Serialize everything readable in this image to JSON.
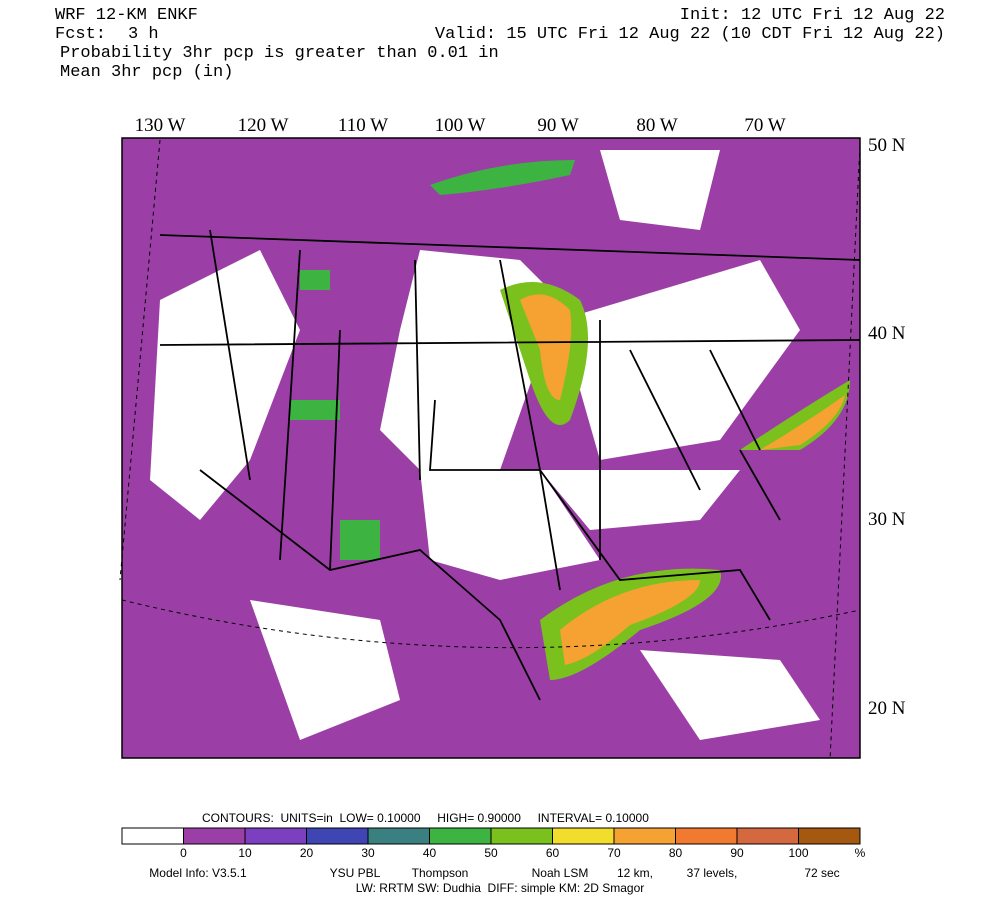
{
  "header": {
    "model": "WRF 12-KM ENKF",
    "init": "Init: 12 UTC Fri 12 Aug 22",
    "fcst_label": "Fcst:",
    "fcst_value": "3 h",
    "valid": "Valid: 15 UTC Fri 12 Aug 22 (10 CDT Fri 12 Aug 22)",
    "field1": "Probability 3hr pcp is greater than 0.01 in",
    "field2": "Mean 3hr pcp (in)"
  },
  "map": {
    "lon_labels": [
      "130 W",
      "120 W",
      "110 W",
      "100 W",
      "90 W",
      "80 W",
      "70 W"
    ],
    "lat_labels": [
      "50 N",
      "40 N",
      "30 N",
      "20 N"
    ]
  },
  "colorbar": {
    "contours": "CONTOURS:  UNITS=in  LOW= 0.10000     HIGH= 0.90000     INTERVAL= 0.10000",
    "colors": [
      "#ffffff",
      "#9b3fa6",
      "#7b3fbf",
      "#3f46b4",
      "#3a8080",
      "#3db441",
      "#7ac11e",
      "#f2dc2c",
      "#f5a233",
      "#f27a30",
      "#d4683f",
      "#a5580f"
    ],
    "labels": [
      "0",
      "10",
      "20",
      "30",
      "40",
      "50",
      "60",
      "70",
      "80",
      "90",
      "100",
      "%"
    ]
  },
  "footer": {
    "line1": [
      "Model Info: V3.5.1",
      "YSU PBL",
      "Thompson",
      "Noah LSM",
      "12 km,",
      "37 levels,",
      "72 sec"
    ],
    "line2": "LW: RRTM SW: Dudhia  DIFF: simple KM: 2D Smagor"
  }
}
